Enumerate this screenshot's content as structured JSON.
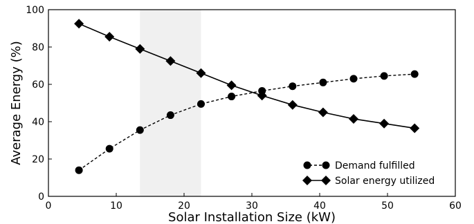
{
  "chart_data": {
    "type": "line",
    "xlabel": "Solar Installation Size (kW)",
    "ylabel": "Average Energy (%)",
    "xlim": [
      0,
      60
    ],
    "ylim": [
      0,
      100
    ],
    "xticks": [
      0,
      10,
      20,
      30,
      40,
      50,
      60
    ],
    "yticks": [
      0,
      20,
      40,
      60,
      80,
      100
    ],
    "grid": false,
    "legend_position": "bottom-right",
    "shaded_region": {
      "x_start": 13.5,
      "x_end": 22.5,
      "color": "#f0f0f0"
    },
    "x": [
      4.5,
      9,
      13.5,
      18,
      22.5,
      27,
      31.5,
      36,
      40.5,
      45,
      49.5,
      54
    ],
    "series": [
      {
        "name": "Demand fulfilled",
        "marker": "circle",
        "line": "dashed",
        "color": "#000000",
        "values": [
          14,
          25.5,
          35.5,
          43.5,
          49.5,
          53.5,
          56.5,
          59,
          61,
          63,
          64.5,
          65.5
        ]
      },
      {
        "name": "Solar energy utilized",
        "marker": "diamond",
        "line": "solid",
        "color": "#000000",
        "values": [
          92.5,
          85.5,
          79,
          72.5,
          66,
          59.5,
          54,
          49,
          45,
          41.5,
          39,
          36.5
        ]
      }
    ]
  }
}
